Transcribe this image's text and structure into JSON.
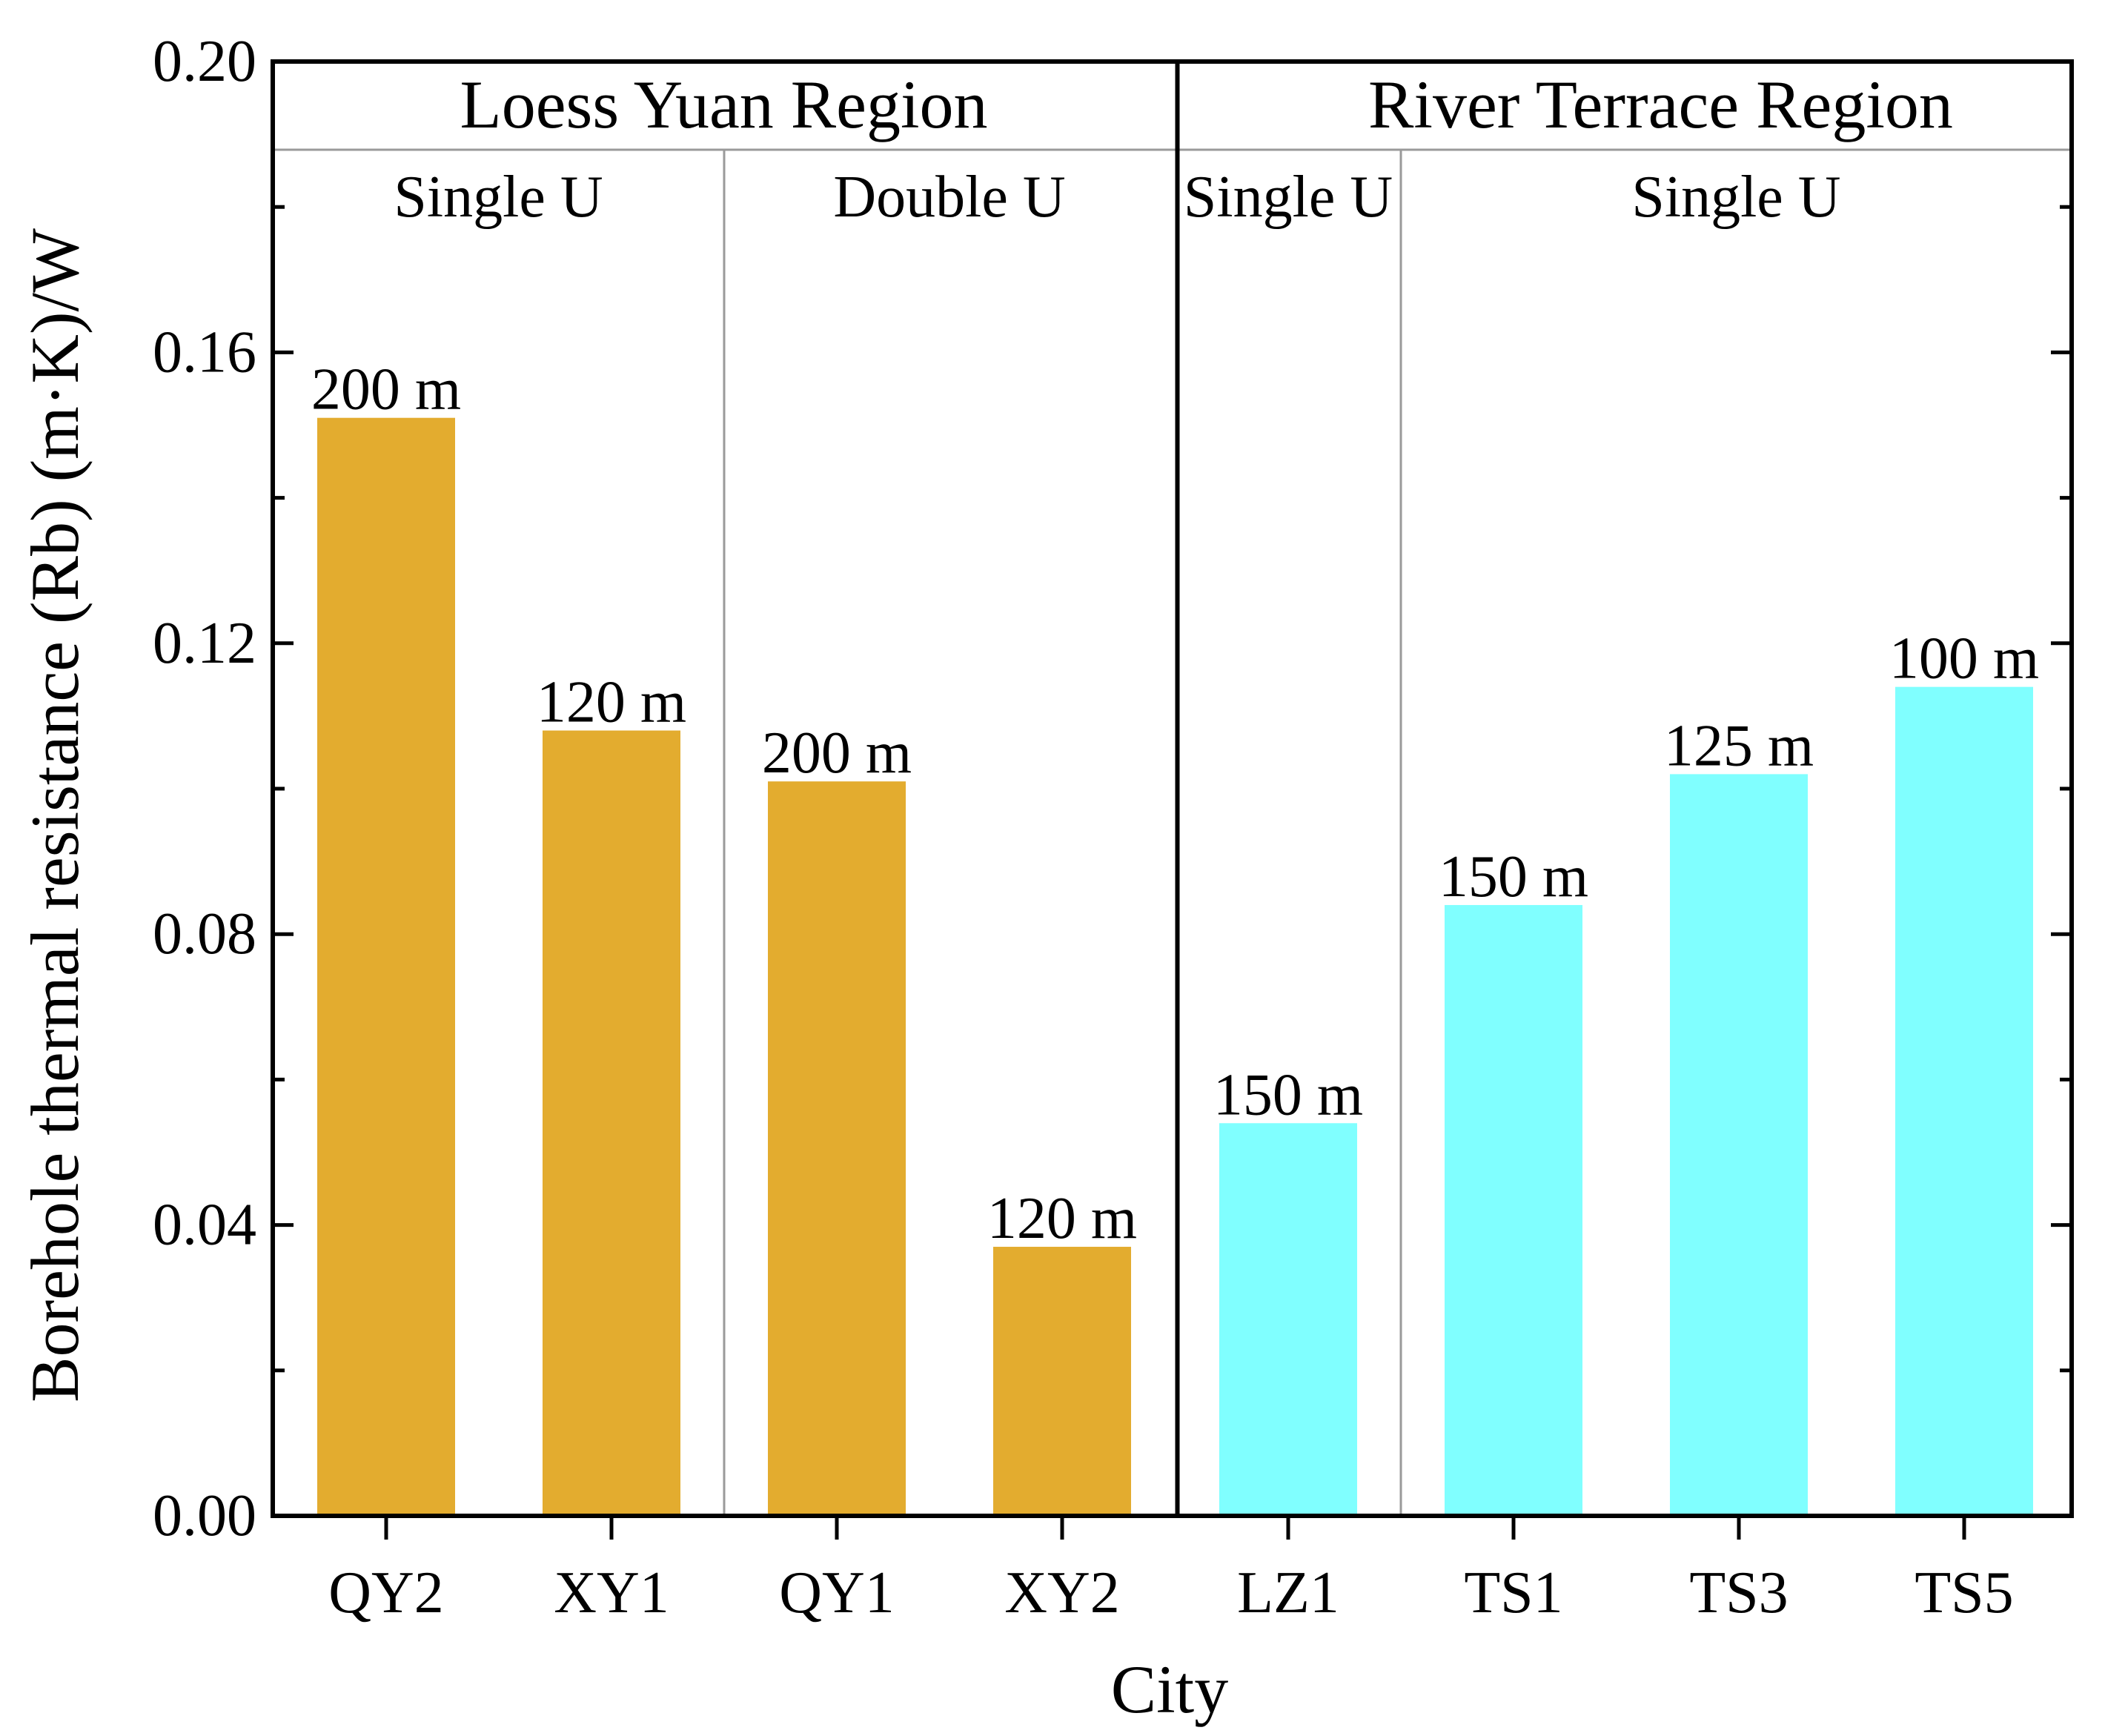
{
  "chart_data": {
    "type": "bar",
    "title": "",
    "xlabel": "City",
    "ylabel": "Borehole thermal resistance (Rb) (m·K)/W",
    "ylim": [
      0,
      0.2
    ],
    "yticks": [
      "0.00",
      "0.04",
      "0.08",
      "0.12",
      "0.16",
      "0.20"
    ],
    "categories": [
      "QY2",
      "XY1",
      "QY1",
      "XY2",
      "LZ1",
      "TS1",
      "TS3",
      "TS5"
    ],
    "values": [
      0.151,
      0.108,
      0.101,
      0.037,
      0.054,
      0.084,
      0.102,
      0.114
    ],
    "bar_labels": [
      "200 m",
      "120 m",
      "200 m",
      "120 m",
      "150 m",
      "150 m",
      "125 m",
      "100 m"
    ],
    "bar_colors": [
      "#E3AC2F",
      "#E3AC2F",
      "#E3AC2F",
      "#E3AC2F",
      "#80FFFF",
      "#80FFFF",
      "#80FFFF",
      "#80FFFF"
    ],
    "regions": [
      {
        "label": "Loess Yuan Region",
        "from_index": 0,
        "to_index": 3
      },
      {
        "label": "River Terrace Region",
        "from_index": 4,
        "to_index": 7
      }
    ],
    "subgroups": [
      {
        "label": "Single U",
        "from_index": 0,
        "to_index": 1
      },
      {
        "label": "Double U",
        "from_index": 2,
        "to_index": 3
      },
      {
        "label": "Single U",
        "from_index": 4,
        "to_index": 4
      },
      {
        "label": "Single U",
        "from_index": 5,
        "to_index": 7
      }
    ]
  }
}
